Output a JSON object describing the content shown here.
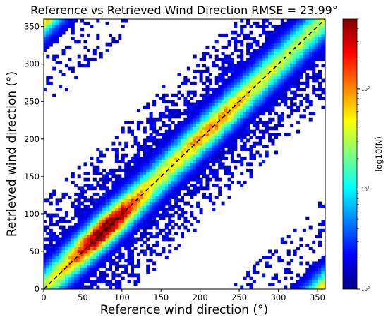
{
  "chart_data": {
    "type": "heatmap",
    "title": "Reference vs Retrieved Wind Direction RMSE = 23.99°",
    "xlabel": "Reference wind direction (°)",
    "ylabel": "Retrieved wind direction (°)",
    "xlim": [
      0,
      360
    ],
    "ylim": [
      0,
      360
    ],
    "x_ticks": [
      "0",
      "50",
      "100",
      "150",
      "200",
      "250",
      "300",
      "350"
    ],
    "y_ticks": [
      "0",
      "50",
      "100",
      "150",
      "200",
      "250",
      "300",
      "350"
    ],
    "reference_line": {
      "style": "dashed",
      "color": "#000000",
      "from": [
        0,
        0
      ],
      "to": [
        360,
        360
      ]
    },
    "density_peak": {
      "x": 75,
      "y": 80
    },
    "secondary_peak": {
      "x": 215,
      "y": 215
    },
    "wrap_bands": [
      {
        "region": "top-left",
        "x_range": [
          0,
          130
        ],
        "y_range": [
          235,
          360
        ]
      },
      {
        "region": "bottom-right",
        "x_range": [
          240,
          360
        ],
        "y_range": [
          0,
          125
        ]
      }
    ],
    "colorbar": {
      "label": "log10(N)",
      "scale": "log",
      "ticks": [
        {
          "base": "10",
          "exp": "0",
          "value": 1
        },
        {
          "base": "10",
          "exp": "1",
          "value": 10
        },
        {
          "base": "10",
          "exp": "2",
          "value": 100
        }
      ],
      "max": 500,
      "colormap": "jet"
    },
    "grid": false
  }
}
